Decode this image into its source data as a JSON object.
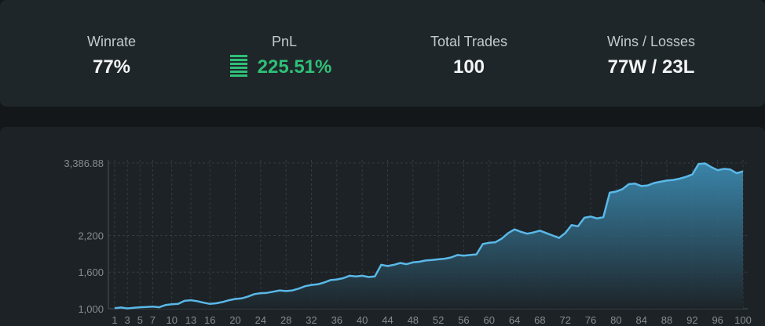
{
  "stats": [
    {
      "label": "Winrate",
      "value": "77%"
    },
    {
      "label": "PnL",
      "value": "225.51%"
    },
    {
      "label": "Total Trades",
      "value": "100"
    },
    {
      "label": "Wins / Losses",
      "value": "77W / 23L"
    }
  ],
  "chart_data": {
    "type": "area",
    "color": "#5ab8e8",
    "grid": true,
    "x": [
      1,
      2,
      3,
      4,
      5,
      6,
      7,
      8,
      9,
      10,
      11,
      12,
      13,
      14,
      15,
      16,
      17,
      18,
      19,
      20,
      21,
      22,
      23,
      24,
      25,
      26,
      27,
      28,
      29,
      30,
      31,
      32,
      33,
      34,
      35,
      36,
      37,
      38,
      39,
      40,
      41,
      42,
      43,
      44,
      45,
      46,
      47,
      48,
      49,
      50,
      51,
      52,
      53,
      54,
      55,
      56,
      57,
      58,
      59,
      60,
      61,
      62,
      63,
      64,
      65,
      66,
      67,
      68,
      69,
      70,
      71,
      72,
      73,
      74,
      75,
      76,
      77,
      78,
      79,
      80,
      81,
      82,
      83,
      84,
      85,
      86,
      87,
      88,
      89,
      90,
      91,
      92,
      93,
      94,
      95,
      96,
      97,
      98,
      99,
      100
    ],
    "values": [
      1010,
      1020,
      1005,
      1015,
      1025,
      1030,
      1035,
      1025,
      1060,
      1075,
      1080,
      1130,
      1140,
      1125,
      1100,
      1080,
      1090,
      1110,
      1140,
      1160,
      1170,
      1200,
      1240,
      1255,
      1260,
      1280,
      1300,
      1290,
      1300,
      1330,
      1370,
      1390,
      1400,
      1430,
      1470,
      1480,
      1500,
      1540,
      1530,
      1540,
      1520,
      1530,
      1720,
      1700,
      1720,
      1750,
      1730,
      1760,
      1770,
      1790,
      1800,
      1810,
      1820,
      1840,
      1880,
      1870,
      1880,
      1890,
      2060,
      2080,
      2090,
      2150,
      2240,
      2300,
      2260,
      2230,
      2250,
      2280,
      2240,
      2200,
      2160,
      2240,
      2370,
      2350,
      2490,
      2510,
      2480,
      2500,
      2900,
      2920,
      2960,
      3040,
      3050,
      3010,
      3020,
      3060,
      3080,
      3100,
      3110,
      3130,
      3160,
      3200,
      3370,
      3380,
      3320,
      3270,
      3290,
      3280,
      3220,
      3250
    ],
    "xlim": [
      1,
      100
    ],
    "xticks": [
      1,
      3,
      5,
      7,
      10,
      13,
      16,
      20,
      24,
      28,
      32,
      36,
      40,
      44,
      48,
      52,
      56,
      60,
      64,
      68,
      72,
      76,
      80,
      84,
      88,
      92,
      96,
      100
    ],
    "ylim": [
      1000,
      3386.88
    ],
    "yticks": [
      {
        "value": 1000,
        "label": "1,000"
      },
      {
        "value": 1600,
        "label": "1,600"
      },
      {
        "value": 2200,
        "label": "2,200"
      },
      {
        "value": 3386.88,
        "label": "3,386.88"
      }
    ]
  }
}
